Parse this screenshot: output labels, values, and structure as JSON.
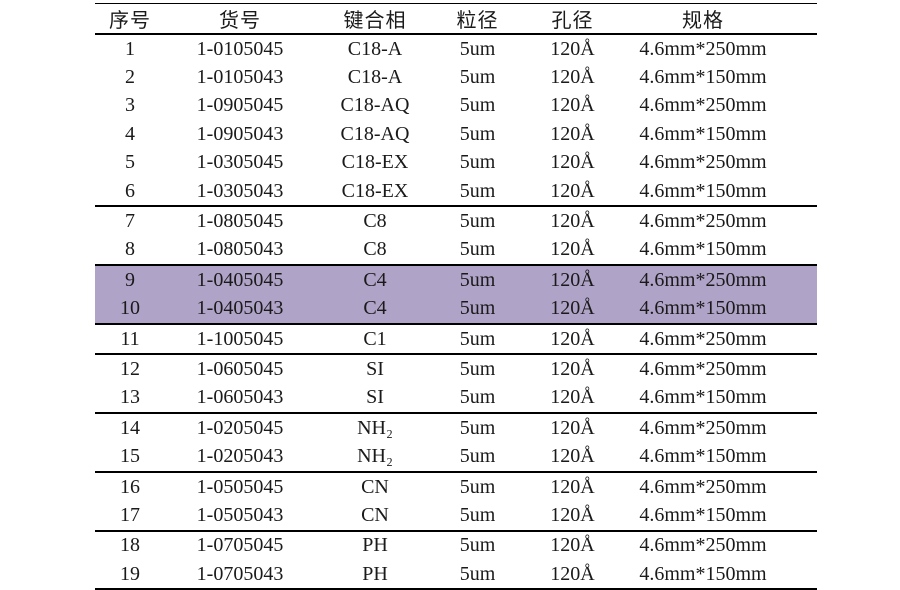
{
  "page": {
    "background": "#ffffff",
    "text_color": "#1a1a1a",
    "rule_color": "#000000"
  },
  "table": {
    "highlight_color": "#b0a3c8",
    "columns": [
      "序号",
      "货号",
      "键合相",
      "粒径",
      "孔径",
      "规格"
    ],
    "rows": [
      {
        "cells": [
          "1",
          "1-0105045",
          "C18-A",
          "5um",
          "120Å",
          "4.6mm*250mm"
        ],
        "highlight": false,
        "group_end": false
      },
      {
        "cells": [
          "2",
          "1-0105043",
          "C18-A",
          "5um",
          "120Å",
          "4.6mm*150mm"
        ],
        "highlight": false,
        "group_end": false
      },
      {
        "cells": [
          "3",
          "1-0905045",
          "C18-AQ",
          "5um",
          "120Å",
          "4.6mm*250mm"
        ],
        "highlight": false,
        "group_end": false
      },
      {
        "cells": [
          "4",
          "1-0905043",
          "C18-AQ",
          "5um",
          "120Å",
          "4.6mm*150mm"
        ],
        "highlight": false,
        "group_end": false
      },
      {
        "cells": [
          "5",
          "1-0305045",
          "C18-EX",
          "5um",
          "120Å",
          "4.6mm*250mm"
        ],
        "highlight": false,
        "group_end": false
      },
      {
        "cells": [
          "6",
          "1-0305043",
          "C18-EX",
          "5um",
          "120Å",
          "4.6mm*150mm"
        ],
        "highlight": false,
        "group_end": true
      },
      {
        "cells": [
          "7",
          "1-0805045",
          "C8",
          "5um",
          "120Å",
          "4.6mm*250mm"
        ],
        "highlight": false,
        "group_end": false
      },
      {
        "cells": [
          "8",
          "1-0805043",
          "C8",
          "5um",
          "120Å",
          "4.6mm*150mm"
        ],
        "highlight": false,
        "group_end": true
      },
      {
        "cells": [
          "9",
          "1-0405045",
          "C4",
          "5um",
          "120Å",
          "4.6mm*250mm"
        ],
        "highlight": true,
        "group_end": false
      },
      {
        "cells": [
          "10",
          "1-0405043",
          "C4",
          "5um",
          "120Å",
          "4.6mm*150mm"
        ],
        "highlight": true,
        "group_end": true
      },
      {
        "cells": [
          "11",
          "1-1005045",
          "C1",
          "5um",
          "120Å",
          "4.6mm*250mm"
        ],
        "highlight": false,
        "group_end": true
      },
      {
        "cells": [
          "12",
          "1-0605045",
          "SI",
          "5um",
          "120Å",
          "4.6mm*250mm"
        ],
        "highlight": false,
        "group_end": false
      },
      {
        "cells": [
          "13",
          "1-0605043",
          "SI",
          "5um",
          "120Å",
          "4.6mm*150mm"
        ],
        "highlight": false,
        "group_end": true
      },
      {
        "cells": [
          "14",
          "1-0205045",
          "NH₂",
          "5um",
          "120Å",
          "4.6mm*250mm"
        ],
        "highlight": false,
        "group_end": false
      },
      {
        "cells": [
          "15",
          "1-0205043",
          "NH₂",
          "5um",
          "120Å",
          "4.6mm*150mm"
        ],
        "highlight": false,
        "group_end": true
      },
      {
        "cells": [
          "16",
          "1-0505045",
          "CN",
          "5um",
          "120Å",
          "4.6mm*250mm"
        ],
        "highlight": false,
        "group_end": false
      },
      {
        "cells": [
          "17",
          "1-0505043",
          "CN",
          "5um",
          "120Å",
          "4.6mm*150mm"
        ],
        "highlight": false,
        "group_end": true
      },
      {
        "cells": [
          "18",
          "1-0705045",
          "PH",
          "5um",
          "120Å",
          "4.6mm*250mm"
        ],
        "highlight": false,
        "group_end": false
      },
      {
        "cells": [
          "19",
          "1-0705043",
          "PH",
          "5um",
          "120Å",
          "4.6mm*150mm"
        ],
        "highlight": false,
        "group_end": false
      }
    ]
  }
}
